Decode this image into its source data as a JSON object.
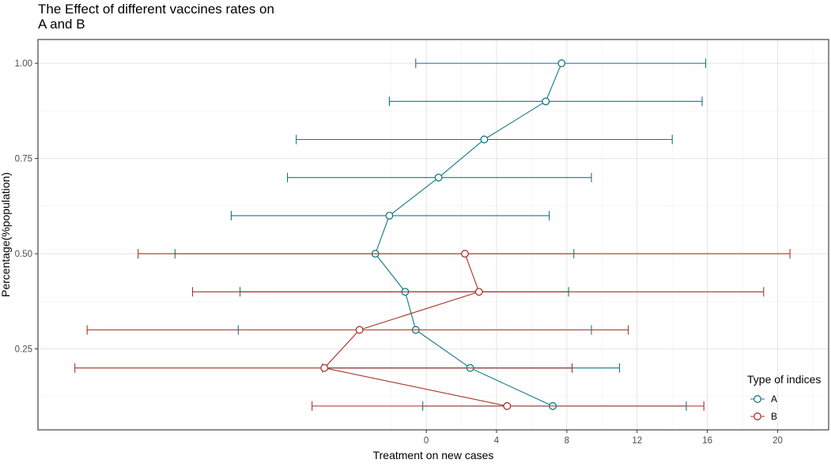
{
  "chart_data": {
    "type": "line",
    "title_line1": "The Effect of different vaccines rates on",
    "title_line2": "A and B",
    "xlabel": "Treatment on new cases",
    "ylabel": "Percentage(%population)",
    "xlim": [
      -22.1,
      22.9
    ],
    "ylim": [
      0.0375,
      1.0625
    ],
    "x_ticks": [
      0,
      4,
      8,
      12,
      16,
      20
    ],
    "x_tick_labels": [
      "0",
      "4",
      "8",
      "12",
      "16",
      "20"
    ],
    "y_ticks": [
      0.25,
      0.5,
      0.75,
      1.0
    ],
    "y_tick_labels": [
      "0.25",
      "0.50",
      "0.75",
      "1.00"
    ],
    "grid": true,
    "legend": {
      "title": "Type of indices",
      "position": "bottom-right"
    },
    "series": [
      {
        "name": "A",
        "color": "#117888",
        "points": [
          {
            "y": 1.0,
            "x": 7.7,
            "lo": -0.6,
            "hi": 15.9
          },
          {
            "y": 0.9,
            "x": 6.8,
            "lo": -2.1,
            "hi": 15.7
          },
          {
            "y": 0.8,
            "x": 3.3,
            "lo": -7.4,
            "hi": 14.0
          },
          {
            "y": 0.7,
            "x": 0.7,
            "lo": -7.9,
            "hi": 9.4
          },
          {
            "y": 0.6,
            "x": -2.1,
            "lo": -11.1,
            "hi": 7.0
          },
          {
            "y": 0.5,
            "x": -2.9,
            "lo": -14.3,
            "hi": 8.4
          },
          {
            "y": 0.4,
            "x": -1.2,
            "lo": -10.6,
            "hi": 8.1
          },
          {
            "y": 0.3,
            "x": -0.6,
            "lo": -10.7,
            "hi": 9.4
          },
          {
            "y": 0.2,
            "x": 2.5,
            "lo": -5.9,
            "hi": 11.0
          },
          {
            "y": 0.1,
            "x": 7.2,
            "lo": -0.2,
            "hi": 14.8
          }
        ]
      },
      {
        "name": "B",
        "color": "#a93226",
        "points": [
          {
            "y": 0.5,
            "x": 2.2,
            "lo": -16.4,
            "hi": 20.7
          },
          {
            "y": 0.4,
            "x": 3.0,
            "lo": -13.3,
            "hi": 19.2
          },
          {
            "y": 0.3,
            "x": -3.8,
            "lo": -19.3,
            "hi": 11.5
          },
          {
            "y": 0.2,
            "x": -5.8,
            "lo": -20.0,
            "hi": 8.3
          },
          {
            "y": 0.1,
            "x": 4.6,
            "lo": -6.5,
            "hi": 15.8
          }
        ]
      }
    ]
  }
}
